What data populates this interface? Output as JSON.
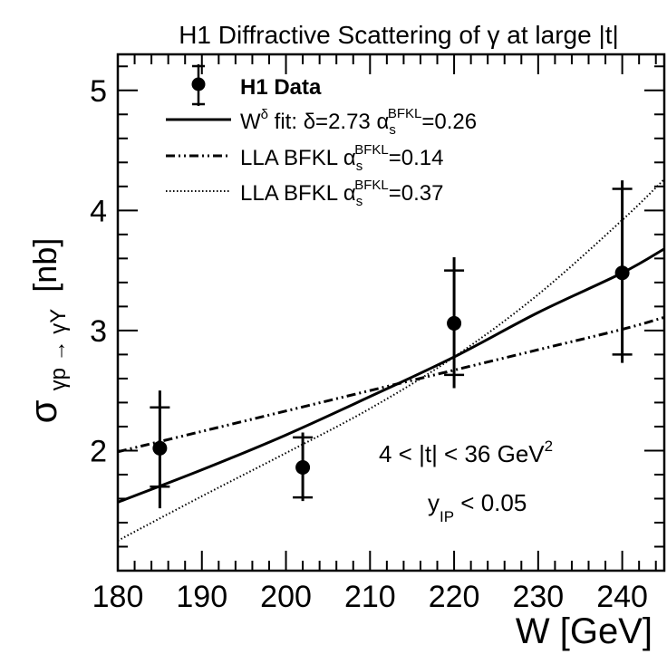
{
  "chart_data": {
    "type": "line",
    "title": "H1 Diffractive Scattering of γ at large |t|",
    "xlabel": "W [GeV]",
    "ylabel": "σ",
    "ylabel_sub": "γp → γY",
    "ylabel_unit": "[nb]",
    "xlim": [
      180,
      245
    ],
    "ylim": [
      1.0,
      5.3
    ],
    "xticks": [
      180,
      190,
      200,
      210,
      220,
      230,
      240
    ],
    "yticks": [
      2,
      3,
      4,
      5
    ],
    "grid": false,
    "legend_position": "top-left",
    "data_points": {
      "name": "H1 Data",
      "points": [
        {
          "x": 185,
          "y": 2.02,
          "stat_lo": 1.7,
          "stat_hi": 2.36,
          "tot_lo": 1.52,
          "tot_hi": 2.5
        },
        {
          "x": 202,
          "y": 1.86,
          "stat_lo": 1.61,
          "stat_hi": 2.11,
          "tot_lo": 1.58,
          "tot_hi": 2.15
        },
        {
          "x": 220,
          "y": 3.06,
          "stat_lo": 2.63,
          "stat_hi": 3.5,
          "tot_lo": 2.52,
          "tot_hi": 3.61
        },
        {
          "x": 240,
          "y": 3.48,
          "stat_lo": 2.8,
          "stat_hi": 4.18,
          "tot_lo": 2.73,
          "tot_hi": 4.25
        }
      ]
    },
    "series": [
      {
        "name": "W^δ fit: δ=2.73 α_s^BFKL=0.26",
        "style": "solid",
        "x": [
          180,
          190,
          200,
          210,
          220,
          230,
          240,
          245
        ],
        "values": [
          1.57,
          1.84,
          2.13,
          2.45,
          2.78,
          3.15,
          3.48,
          3.68
        ]
      },
      {
        "name": "LLA BFKL α_s^BFKL=0.14",
        "style": "dash-dot",
        "x": [
          180,
          190,
          200,
          210,
          220,
          230,
          240,
          245
        ],
        "values": [
          1.99,
          2.16,
          2.33,
          2.5,
          2.67,
          2.84,
          3.01,
          3.11
        ]
      },
      {
        "name": "LLA BFKL α_s^BFKL=0.37",
        "style": "dotted",
        "x": [
          180,
          190,
          200,
          210,
          220,
          230,
          240,
          245
        ],
        "values": [
          1.25,
          1.62,
          1.98,
          2.35,
          2.78,
          3.3,
          3.92,
          4.26
        ]
      }
    ],
    "legend": {
      "data": {
        "label": "H1 Data"
      },
      "fit": {
        "pre": "W",
        "sup": "δ",
        "mid": " fit: δ=2.73 α",
        "sub": "s",
        "sup2": "BFKL",
        "post": "=0.26"
      },
      "lla14": {
        "pre": "LLA BFKL α",
        "sub": "s",
        "sup": "BFKL",
        "post": "=0.14"
      },
      "lla37": {
        "pre": "LLA BFKL α",
        "sub": "s",
        "sup": "BFKL",
        "post": "=0.37"
      }
    },
    "annotations": {
      "t_range": {
        "pre": "4 < |t| < 36 GeV",
        "sup": "2"
      },
      "y_ip": {
        "pre": "y",
        "sub": "IP",
        "post": " < 0.05"
      }
    }
  }
}
